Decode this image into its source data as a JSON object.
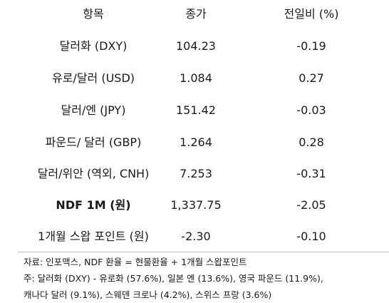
{
  "header": {
    "item": "항목",
    "close": "종가",
    "change": "전일비 (%)"
  },
  "rows": [
    {
      "item": "달러화 (DXY)",
      "close": "104.23",
      "change": "-0.19",
      "bold": false
    },
    {
      "item": "유로/달러 (USD)",
      "close": "1.084",
      "change": "0.27",
      "bold": false
    },
    {
      "item": "달러/엔 (JPY)",
      "close": "151.42",
      "change": "-0.03",
      "bold": false
    },
    {
      "item": "파운드/ 달러 (GBP)",
      "close": "1.264",
      "change": "0.28",
      "bold": false
    },
    {
      "item": "달러/위안 (역외, CNH)",
      "close": "7.253",
      "change": "-0.31",
      "bold": false
    },
    {
      "item": "NDF 1M (원)",
      "close": "1,337.75",
      "change": "-2.05",
      "bold": true
    },
    {
      "item": "1개월 스왑 포인트 (원)",
      "close": "-2.30",
      "change": "-0.10",
      "bold": false
    }
  ],
  "notes": {
    "source": "자료: 인포맥스, NDF 환율 = 현물환율 + 1개월 스왑포인트",
    "note_line1": "주: 달러화 (DXY) - 유로화 (57.6%), 일본 엔 (13.6%), 영국 파운드 (11.9%),",
    "note_line2": "캐나다 달러 (9.1%), 스웨덴 크로나 (4.2%), 스위스 프랑 (3.6%)"
  }
}
